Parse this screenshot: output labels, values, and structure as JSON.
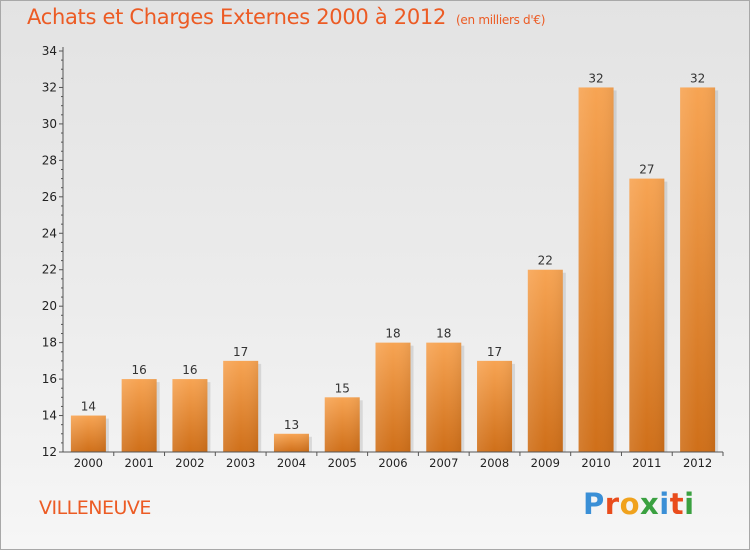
{
  "title": "Achats et Charges Externes 2000 à 2012",
  "subtitle": "(en milliers d'€)",
  "town": "VILLENEUVE",
  "logo": {
    "letters": [
      "P",
      "r",
      "o",
      "x",
      "i",
      "t",
      "i"
    ],
    "colors": [
      "#3a8fd6",
      "#e94c1c",
      "#f0a21d",
      "#3aa040",
      "#3a8fd6",
      "#e94c1c",
      "#3aa040"
    ]
  },
  "colors": {
    "title": "#ec5b24",
    "bar_light": "#f7a453",
    "bar_dark": "#cf6f19",
    "axis": "#555555"
  },
  "chart_data": {
    "type": "bar",
    "title": "Achats et Charges Externes 2000 à 2012",
    "subtitle": "(en milliers d'€)",
    "categories": [
      "2000",
      "2001",
      "2002",
      "2003",
      "2004",
      "2005",
      "2006",
      "2007",
      "2008",
      "2009",
      "2010",
      "2011",
      "2012"
    ],
    "values": [
      14,
      16,
      16,
      17,
      13,
      15,
      18,
      18,
      17,
      22,
      32,
      27,
      32
    ],
    "ylim": [
      12,
      34
    ],
    "yticks": [
      12,
      14,
      16,
      18,
      20,
      22,
      24,
      26,
      28,
      30,
      32,
      34
    ],
    "xlabel": "",
    "ylabel": "",
    "grid": false,
    "legend": "none"
  }
}
